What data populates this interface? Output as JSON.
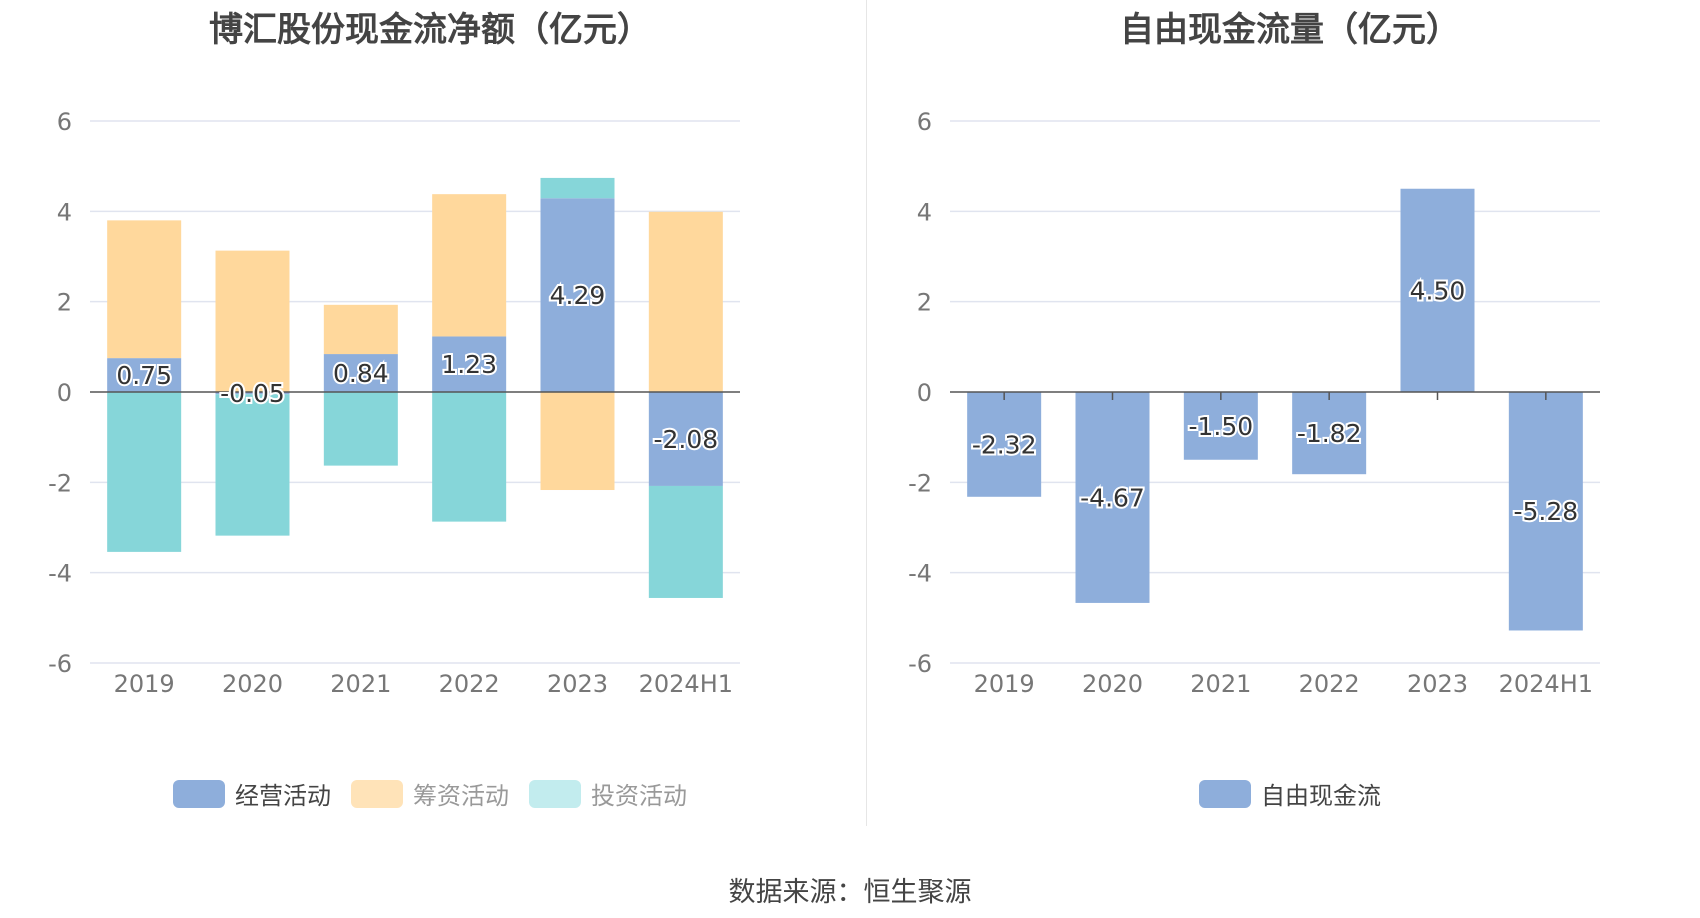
{
  "colors": {
    "operating": "#8eaedb",
    "financing": "#ffd89c",
    "investing": "#86d6d9",
    "investing_legend": "#c2ecee",
    "free": "#8eaedb",
    "grid": "#e0e4ef",
    "axis": "#555555",
    "tick": "#777777"
  },
  "source_text": "数据来源：恒生聚源",
  "chart_data": [
    {
      "type": "bar",
      "stacked": true,
      "title": "博汇股份现金流净额（亿元）",
      "categories": [
        "2019",
        "2020",
        "2021",
        "2022",
        "2023",
        "2024H1"
      ],
      "ylim": [
        -6,
        6
      ],
      "yticks": [
        6,
        4,
        2,
        0,
        -2,
        -4,
        -6
      ],
      "grid": true,
      "legend_position": "bottom",
      "series": [
        {
          "name": "经营活动",
          "values": [
            0.75,
            -0.05,
            0.84,
            1.23,
            4.29,
            -2.08
          ],
          "labels": [
            "0.75",
            "-0.05",
            "0.84",
            "1.23",
            "4.29",
            "-2.08"
          ]
        },
        {
          "name": "筹资活动",
          "values": [
            3.05,
            3.13,
            1.09,
            3.15,
            -2.17,
            3.99
          ]
        },
        {
          "name": "投资活动",
          "values": [
            -3.54,
            -3.13,
            -1.63,
            -2.87,
            0.45,
            -2.48
          ]
        }
      ]
    },
    {
      "type": "bar",
      "title": "自由现金流量（亿元）",
      "categories": [
        "2019",
        "2020",
        "2021",
        "2022",
        "2023",
        "2024H1"
      ],
      "ylim": [
        -6,
        6
      ],
      "yticks": [
        6,
        4,
        2,
        0,
        -2,
        -4,
        -6
      ],
      "grid": true,
      "legend_position": "bottom",
      "series": [
        {
          "name": "自由现金流",
          "values": [
            -2.32,
            -4.67,
            -1.5,
            -1.82,
            4.5,
            -5.28
          ],
          "labels": [
            "-2.32",
            "-4.67",
            "-1.50",
            "-1.82",
            "4.50",
            "-5.28"
          ]
        }
      ]
    }
  ]
}
